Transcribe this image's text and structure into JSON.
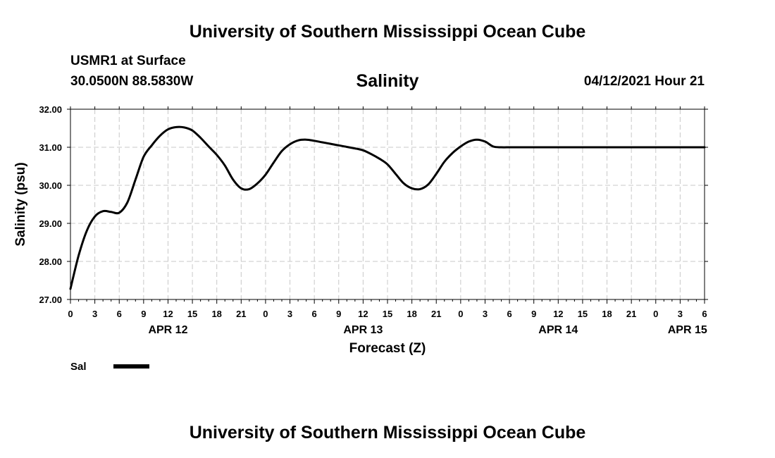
{
  "header": {
    "top_title": "University of Southern Mississippi Ocean Cube",
    "station_name": "USMR1 at Surface",
    "station_coords": "30.0500N  88.5830W",
    "variable_title": "Salinity",
    "date_label": "04/12/2021 Hour 21"
  },
  "footer": {
    "bottom_title": "University of Southern Mississippi Ocean Cube"
  },
  "chart_data": {
    "type": "line",
    "xlabel": "Forecast (Z)",
    "ylabel": "Salinity (psu)",
    "x_unit": "forecast hour (00Z Apr 12 = 0)",
    "xlim": [
      0,
      78
    ],
    "ylim": [
      27.0,
      32.0
    ],
    "y_ticks": [
      "27.00",
      "28.00",
      "29.00",
      "30.00",
      "31.00",
      "32.00"
    ],
    "x_tick_labels": [
      "0",
      "3",
      "6",
      "9",
      "12",
      "15",
      "18",
      "21",
      "0",
      "3",
      "6",
      "9",
      "12",
      "15",
      "18",
      "21",
      "0",
      "3",
      "6",
      "9",
      "12",
      "15",
      "18",
      "21",
      "0",
      "3",
      "6"
    ],
    "day_labels": [
      {
        "label": "APR 12",
        "hour": 12
      },
      {
        "label": "APR 13",
        "hour": 36
      },
      {
        "label": "APR 14",
        "hour": 60
      },
      {
        "label": "APR 15",
        "hour": 75.9
      }
    ],
    "grid": true,
    "line_color": "#000000",
    "series": [
      {
        "name": "Sal",
        "x": [
          0,
          1,
          2,
          3,
          4,
          5,
          6,
          7,
          8,
          9,
          10,
          11,
          12,
          13,
          14,
          15,
          16,
          17,
          18,
          19,
          20,
          21,
          22,
          23,
          24,
          25,
          26,
          27,
          28,
          29,
          30,
          31,
          32,
          33,
          34,
          35,
          36,
          37,
          38,
          39,
          40,
          41,
          42,
          43,
          44,
          45,
          46,
          47,
          48,
          49,
          50,
          51,
          52,
          53,
          54,
          55,
          56,
          57,
          58,
          59,
          60,
          61,
          62,
          63,
          64,
          65,
          66,
          67,
          68,
          69,
          70,
          71,
          72,
          73,
          74,
          75,
          76,
          77,
          78
        ],
        "values": [
          27.28,
          28.15,
          28.8,
          29.18,
          29.32,
          29.3,
          29.28,
          29.55,
          30.15,
          30.75,
          31.05,
          31.3,
          31.47,
          31.53,
          31.52,
          31.44,
          31.25,
          31.02,
          30.8,
          30.52,
          30.15,
          29.92,
          29.9,
          30.05,
          30.28,
          30.6,
          30.9,
          31.08,
          31.18,
          31.2,
          31.17,
          31.13,
          31.09,
          31.05,
          31.01,
          30.97,
          30.92,
          30.82,
          30.7,
          30.55,
          30.3,
          30.05,
          29.92,
          29.9,
          30.02,
          30.3,
          30.62,
          30.85,
          31.02,
          31.15,
          31.2,
          31.15,
          31.02,
          31.0,
          31.0,
          31.0,
          31.0,
          31.0,
          31.0,
          31.0,
          31.0,
          31.0,
          31.0,
          31.0,
          31.0,
          31.0,
          31.0,
          31.0,
          31.0,
          31.0,
          31.0,
          31.0,
          31.0,
          31.0,
          31.0,
          31.0,
          31.0,
          31.0,
          31.0
        ]
      }
    ],
    "legend": {
      "position": "bottom-left",
      "label": "Sal"
    }
  }
}
